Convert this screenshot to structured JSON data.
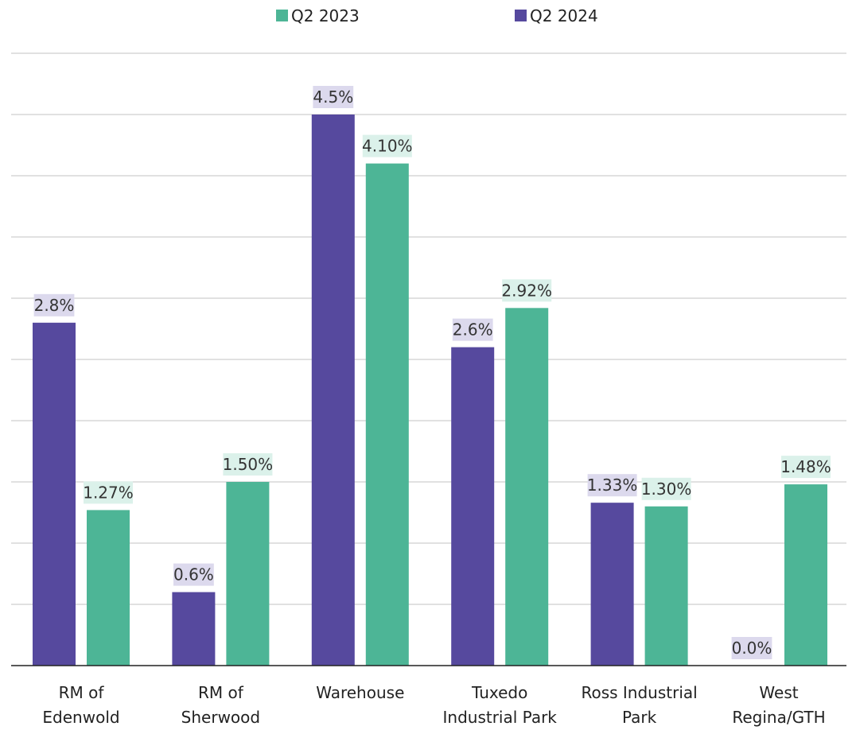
{
  "chart_data": {
    "type": "bar",
    "title": "",
    "xlabel": "",
    "ylabel": "",
    "ylim": [
      0,
      5
    ],
    "grid": true,
    "legend_position": "top",
    "categories": [
      [
        "RM of",
        "Edenwold"
      ],
      [
        "RM of",
        "Sherwood"
      ],
      [
        "Warehouse"
      ],
      [
        "Tuxedo",
        "Industrial Park"
      ],
      [
        "Ross Industrial",
        "Park"
      ],
      [
        "West",
        "Regina/GTH"
      ]
    ],
    "series": [
      {
        "name": "Q2 2024",
        "color": "#56499e",
        "label_bg": "#dcd9ed",
        "values": [
          2.8,
          0.6,
          4.5,
          2.6,
          1.33,
          0.0
        ],
        "labels": [
          "2.8%",
          "0.6%",
          "4.5%",
          "2.6%",
          "1.33%",
          "0.0%"
        ]
      },
      {
        "name": "Q2 2023",
        "color": "#4db596",
        "label_bg": "#dbf1ea",
        "values": [
          1.27,
          1.5,
          4.1,
          2.92,
          1.3,
          1.48
        ],
        "labels": [
          "1.27%",
          "1.50%",
          "4.10%",
          "2.92%",
          "1.30%",
          "1.48%"
        ]
      }
    ],
    "legend": [
      {
        "name": "Q2 2023",
        "color": "#4db596"
      },
      {
        "name": "Q2 2024",
        "color": "#56499e"
      }
    ]
  }
}
